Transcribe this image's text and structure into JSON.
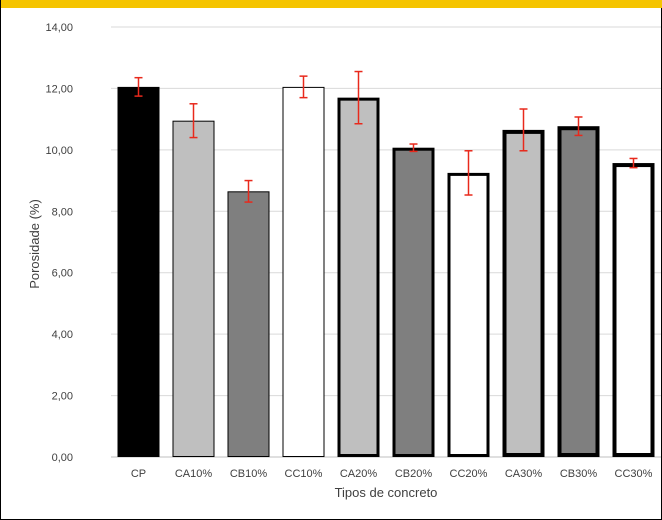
{
  "colors": {
    "top_bar": "#f5c400",
    "error_bar": "#e8291c",
    "grid": "#d9d9d9"
  },
  "chart_data": {
    "type": "bar",
    "title": "",
    "xlabel": "Tipos de concreto",
    "ylabel": "Porosidade  (%)",
    "ylim": [
      0,
      14
    ],
    "y_ticks": [
      "0,00",
      "2,00",
      "4,00",
      "6,00",
      "8,00",
      "10,00",
      "12,00",
      "14,00"
    ],
    "grid": true,
    "legend": "none",
    "categories": [
      "CP",
      "CA10%",
      "CB10%",
      "CC10%",
      "CA20%",
      "CB20%",
      "CC20%",
      "CA30%",
      "CB30%",
      "CC30%"
    ],
    "values": [
      12.05,
      10.95,
      8.65,
      12.05,
      11.7,
      10.07,
      9.25,
      10.65,
      10.77,
      9.57
    ],
    "errors": [
      0.3,
      0.55,
      0.35,
      0.35,
      0.85,
      0.12,
      0.72,
      0.68,
      0.3,
      0.15
    ],
    "fills": [
      "#000000",
      "#bfbfbf",
      "#7f7f7f",
      "#ffffff",
      "#bfbfbf",
      "#7f7f7f",
      "#ffffff",
      "#bfbfbf",
      "#7f7f7f",
      "#ffffff"
    ],
    "outline": [
      "thin",
      "thin",
      "thin",
      "thin",
      "medium",
      "medium",
      "medium",
      "thick",
      "thick",
      "thick"
    ]
  }
}
